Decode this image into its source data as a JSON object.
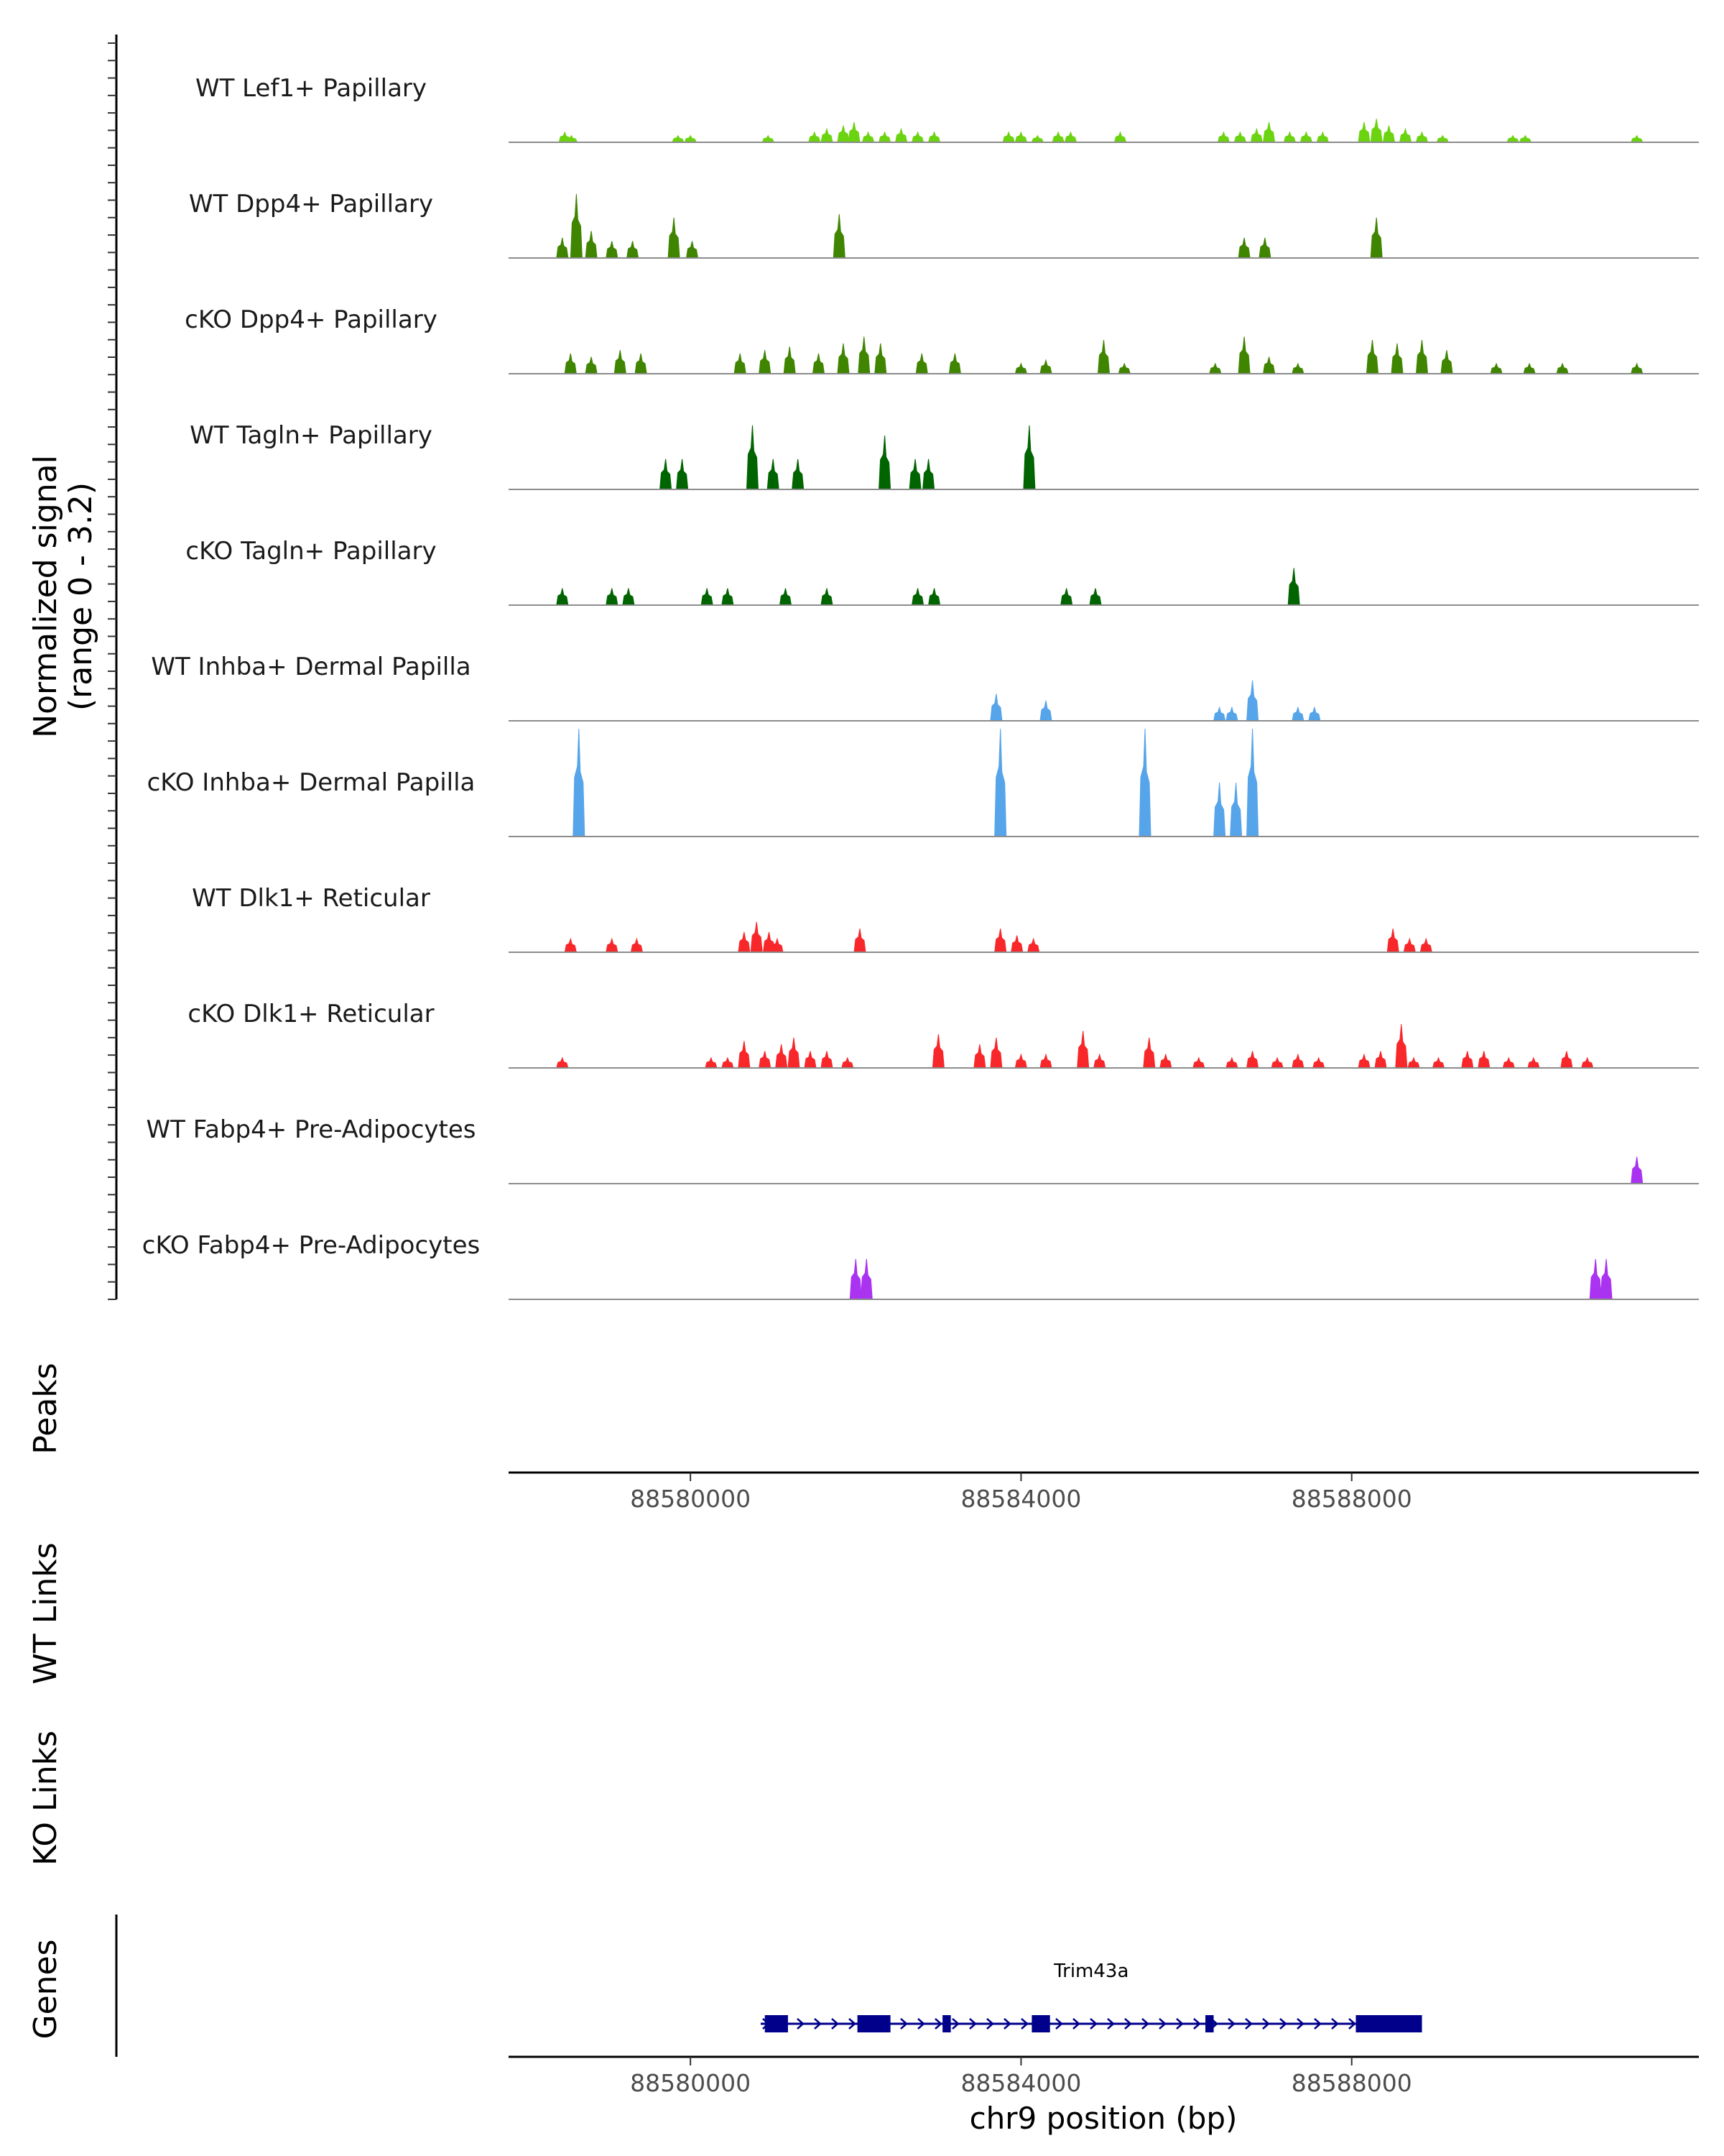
{
  "chart_data": {
    "type": "area",
    "title": "",
    "region": {
      "chrom": "chr9",
      "start": 88577800,
      "end": 88592200
    },
    "y_axis": {
      "label_line1": "Normalized signal",
      "label_line2": "(range 0 - 3.2)",
      "range": [
        0,
        3.2
      ]
    },
    "x_axis": {
      "label": "chr9 position (bp)",
      "ticks": [
        88580000,
        88584000,
        88588000
      ],
      "tick_labels": [
        "88580000",
        "88584000",
        "88588000"
      ]
    },
    "tracks": [
      {
        "name": "WT Lef1+ Papillary",
        "color": "#6BD310",
        "peaks": [
          [
            88578480,
            0.3
          ],
          [
            88578560,
            0.2
          ],
          [
            88579850,
            0.2
          ],
          [
            88580000,
            0.2
          ],
          [
            88580940,
            0.2
          ],
          [
            88581500,
            0.3
          ],
          [
            88581650,
            0.4
          ],
          [
            88581850,
            0.5
          ],
          [
            88581980,
            0.6
          ],
          [
            88582150,
            0.3
          ],
          [
            88582350,
            0.3
          ],
          [
            88582550,
            0.4
          ],
          [
            88582750,
            0.3
          ],
          [
            88582950,
            0.3
          ],
          [
            88583850,
            0.3
          ],
          [
            88584000,
            0.3
          ],
          [
            88584200,
            0.2
          ],
          [
            88584450,
            0.3
          ],
          [
            88584600,
            0.3
          ],
          [
            88585200,
            0.3
          ],
          [
            88586450,
            0.3
          ],
          [
            88586650,
            0.3
          ],
          [
            88586850,
            0.4
          ],
          [
            88587000,
            0.6
          ],
          [
            88587250,
            0.3
          ],
          [
            88587450,
            0.3
          ],
          [
            88587650,
            0.3
          ],
          [
            88588150,
            0.6
          ],
          [
            88588300,
            0.7
          ],
          [
            88588450,
            0.5
          ],
          [
            88588650,
            0.4
          ],
          [
            88588850,
            0.3
          ],
          [
            88589100,
            0.2
          ],
          [
            88589950,
            0.2
          ],
          [
            88590100,
            0.2
          ],
          [
            88591450,
            0.2
          ]
        ]
      },
      {
        "name": "WT Dpp4+ Papillary",
        "color": "#3F8500",
        "peaks": [
          [
            88578450,
            0.6
          ],
          [
            88578620,
            1.9
          ],
          [
            88578800,
            0.8
          ],
          [
            88579050,
            0.5
          ],
          [
            88579300,
            0.5
          ],
          [
            88579800,
            1.2
          ],
          [
            88580020,
            0.5
          ],
          [
            88581800,
            1.3
          ],
          [
            88586700,
            0.6
          ],
          [
            88586950,
            0.6
          ],
          [
            88588300,
            1.2
          ]
        ]
      },
      {
        "name": "cKO Dpp4+ Papillary",
        "color": "#3F8500",
        "peaks": [
          [
            88578550,
            0.6
          ],
          [
            88578800,
            0.5
          ],
          [
            88579150,
            0.7
          ],
          [
            88579400,
            0.6
          ],
          [
            88580600,
            0.6
          ],
          [
            88580900,
            0.7
          ],
          [
            88581200,
            0.8
          ],
          [
            88581550,
            0.6
          ],
          [
            88581850,
            0.9
          ],
          [
            88582100,
            1.1
          ],
          [
            88582300,
            0.9
          ],
          [
            88582800,
            0.6
          ],
          [
            88583200,
            0.6
          ],
          [
            88584000,
            0.3
          ],
          [
            88584300,
            0.4
          ],
          [
            88585000,
            1.0
          ],
          [
            88585250,
            0.3
          ],
          [
            88586350,
            0.3
          ],
          [
            88586700,
            1.1
          ],
          [
            88587000,
            0.5
          ],
          [
            88587350,
            0.3
          ],
          [
            88588250,
            1.0
          ],
          [
            88588550,
            0.9
          ],
          [
            88588850,
            1.0
          ],
          [
            88589150,
            0.7
          ],
          [
            88589750,
            0.3
          ],
          [
            88590150,
            0.3
          ],
          [
            88590550,
            0.3
          ],
          [
            88591450,
            0.3
          ]
        ]
      },
      {
        "name": "WT Tagln+ Papillary",
        "color": "#006400",
        "peaks": [
          [
            88579700,
            0.9
          ],
          [
            88579900,
            0.9
          ],
          [
            88580750,
            1.9
          ],
          [
            88581000,
            0.9
          ],
          [
            88581300,
            0.9
          ],
          [
            88582350,
            1.6
          ],
          [
            88582720,
            0.9
          ],
          [
            88582880,
            0.9
          ],
          [
            88584100,
            1.9
          ]
        ]
      },
      {
        "name": "cKO Tagln+ Papillary",
        "color": "#006400",
        "peaks": [
          [
            88578450,
            0.5
          ],
          [
            88579050,
            0.5
          ],
          [
            88579250,
            0.5
          ],
          [
            88580200,
            0.5
          ],
          [
            88580450,
            0.5
          ],
          [
            88581150,
            0.5
          ],
          [
            88581650,
            0.5
          ],
          [
            88582750,
            0.5
          ],
          [
            88582950,
            0.5
          ],
          [
            88584550,
            0.5
          ],
          [
            88584900,
            0.5
          ],
          [
            88587300,
            1.1
          ]
        ]
      },
      {
        "name": "WT Inhba+ Dermal Papilla",
        "color": "#56A4E9",
        "peaks": [
          [
            88583700,
            0.8
          ],
          [
            88584300,
            0.6
          ],
          [
            88586400,
            0.4
          ],
          [
            88586550,
            0.4
          ],
          [
            88586800,
            1.2
          ],
          [
            88587350,
            0.4
          ],
          [
            88587550,
            0.4
          ]
        ]
      },
      {
        "name": "cKO Inhba+ Dermal Papilla",
        "color": "#56A4E9",
        "peaks": [
          [
            88578650,
            3.2
          ],
          [
            88583750,
            3.2
          ],
          [
            88585500,
            3.2
          ],
          [
            88586400,
            1.6
          ],
          [
            88586600,
            1.6
          ],
          [
            88586800,
            3.2
          ]
        ]
      },
      {
        "name": "WT Dlk1+ Reticular",
        "color": "#F8272A",
        "peaks": [
          [
            88578550,
            0.4
          ],
          [
            88579050,
            0.4
          ],
          [
            88579350,
            0.4
          ],
          [
            88580650,
            0.6
          ],
          [
            88580800,
            0.9
          ],
          [
            88580950,
            0.6
          ],
          [
            88581050,
            0.4
          ],
          [
            88582050,
            0.7
          ],
          [
            88583750,
            0.7
          ],
          [
            88583950,
            0.5
          ],
          [
            88584150,
            0.4
          ],
          [
            88588500,
            0.7
          ],
          [
            88588700,
            0.4
          ],
          [
            88588900,
            0.4
          ]
        ]
      },
      {
        "name": "cKO Dlk1+ Reticular",
        "color": "#F8272A",
        "peaks": [
          [
            88578450,
            0.3
          ],
          [
            88580250,
            0.3
          ],
          [
            88580450,
            0.3
          ],
          [
            88580650,
            0.8
          ],
          [
            88580900,
            0.5
          ],
          [
            88581100,
            0.7
          ],
          [
            88581250,
            0.9
          ],
          [
            88581450,
            0.5
          ],
          [
            88581650,
            0.5
          ],
          [
            88581900,
            0.3
          ],
          [
            88583000,
            1.0
          ],
          [
            88583500,
            0.7
          ],
          [
            88583700,
            0.9
          ],
          [
            88584000,
            0.4
          ],
          [
            88584300,
            0.4
          ],
          [
            88584750,
            1.1
          ],
          [
            88584950,
            0.4
          ],
          [
            88585550,
            0.9
          ],
          [
            88585750,
            0.4
          ],
          [
            88586150,
            0.3
          ],
          [
            88586550,
            0.3
          ],
          [
            88586800,
            0.5
          ],
          [
            88587100,
            0.3
          ],
          [
            88587350,
            0.4
          ],
          [
            88587600,
            0.3
          ],
          [
            88588150,
            0.4
          ],
          [
            88588350,
            0.5
          ],
          [
            88588600,
            1.3
          ],
          [
            88588750,
            0.3
          ],
          [
            88589050,
            0.3
          ],
          [
            88589400,
            0.5
          ],
          [
            88589600,
            0.5
          ],
          [
            88589900,
            0.3
          ],
          [
            88590200,
            0.3
          ],
          [
            88590600,
            0.5
          ],
          [
            88590850,
            0.3
          ]
        ]
      },
      {
        "name": "WT Fabp4+ Pre-Adipocytes",
        "color": "#A933F0",
        "peaks": [
          [
            88591450,
            0.8
          ]
        ]
      },
      {
        "name": "cKO Fabp4+ Pre-Adipocytes",
        "color": "#A933F0",
        "peaks": [
          [
            88582000,
            1.2
          ],
          [
            88582130,
            1.2
          ],
          [
            88590950,
            1.2
          ],
          [
            88591080,
            1.2
          ]
        ]
      }
    ],
    "peaks_track": {
      "label": "Peaks",
      "items": []
    },
    "links_tracks": [
      {
        "label": "WT Links",
        "items": []
      },
      {
        "label": "KO Links",
        "items": []
      }
    ],
    "genes_track": {
      "label": "Genes",
      "genes": [
        {
          "name": "Trim43a",
          "start": 88580850,
          "end": 88588850,
          "strand": "+",
          "exons": [
            [
              88580900,
              88581180
            ],
            [
              88582020,
              88582420
            ],
            [
              88583050,
              88583150
            ],
            [
              88584130,
              88584350
            ],
            [
              88586230,
              88586330
            ],
            [
              88588050,
              88588850
            ]
          ]
        }
      ]
    }
  }
}
